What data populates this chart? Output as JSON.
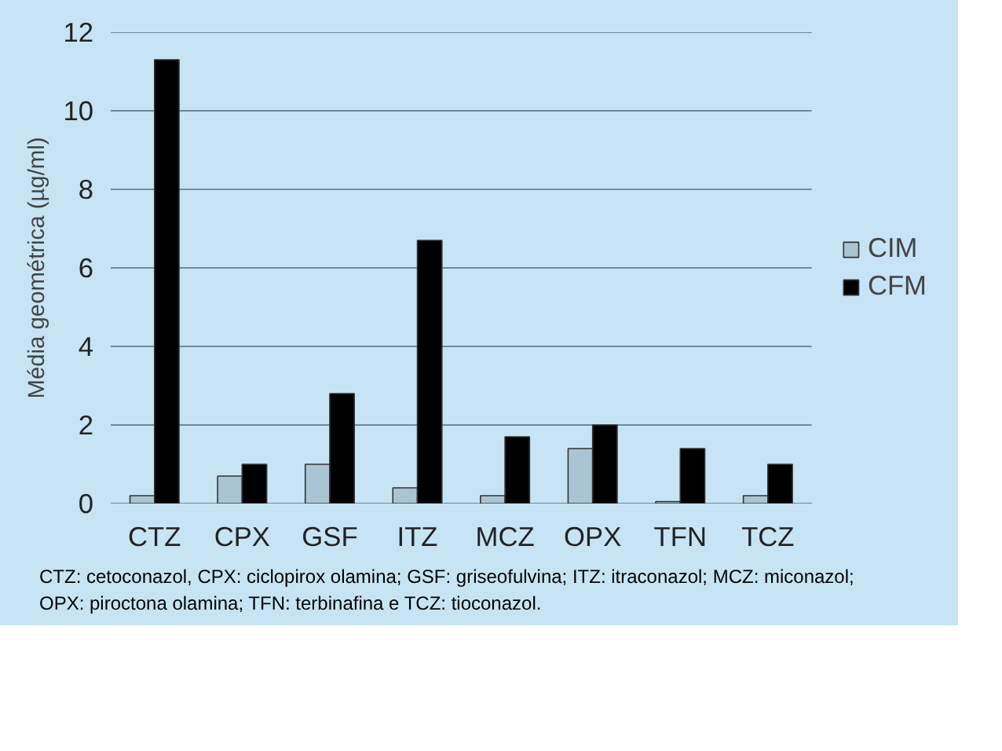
{
  "chart_data": {
    "type": "bar",
    "ylabel": "Média geométrica (µg/ml)",
    "categories": [
      "CTZ",
      "CPX",
      "GSF",
      "ITZ",
      "MCZ",
      "OPX",
      "TFN",
      "TCZ"
    ],
    "series": [
      {
        "name": "CIM",
        "color": "#a9c5d3",
        "values": [
          0.2,
          0.7,
          1.0,
          0.4,
          0.2,
          1.4,
          0.05,
          0.2
        ]
      },
      {
        "name": "CFM",
        "color": "#000000",
        "values": [
          11.3,
          1.0,
          2.8,
          6.7,
          1.7,
          2.0,
          1.4,
          1.0
        ]
      }
    ],
    "ylim": [
      0,
      12
    ],
    "yticks": [
      0,
      2,
      4,
      6,
      8,
      10,
      12
    ],
    "grid": "y",
    "legend": "right",
    "annotations": [
      "CTZ: cetoconazol, CPX: ciclopirox olamina; GSF: griseofulvina; ITZ: itraconazol; MCZ: miconazol; OPX: piroctona olamina; TFN: terbinafina e TCZ: tioconazol."
    ]
  }
}
